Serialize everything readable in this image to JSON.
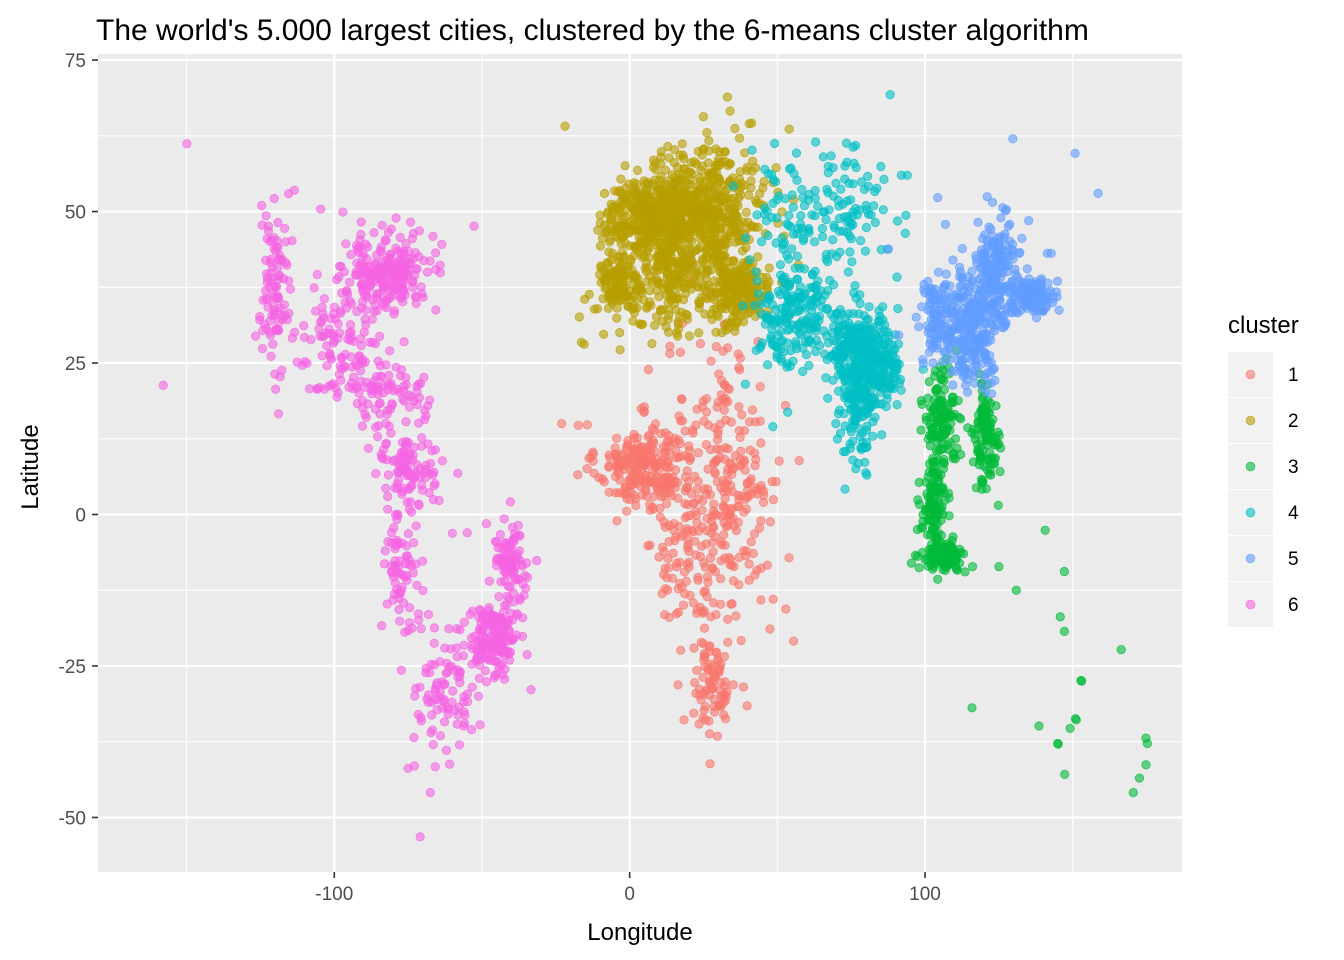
{
  "chart_data": {
    "type": "scatter",
    "title": "The world's 5.000 largest cities, clustered by the 6-means cluster algorithm",
    "xlabel": "Longitude",
    "ylabel": "Latitude",
    "xlim": [
      -180,
      187
    ],
    "ylim": [
      -59,
      76
    ],
    "x_ticks": [
      -100,
      0,
      100
    ],
    "x_tick_labels": [
      "-100",
      "0",
      "100"
    ],
    "y_ticks": [
      -50,
      -25,
      0,
      25,
      50,
      75
    ],
    "y_tick_labels": [
      "-50",
      "-25",
      "0",
      "25",
      "50",
      "75"
    ],
    "grid": true,
    "panel_background": "#ebebeb",
    "point_opacity": 0.6,
    "legend": {
      "title": "cluster",
      "placement": "right"
    },
    "series": [
      {
        "name": "1",
        "color": "#f8766d",
        "clusters": [
          {
            "cx": 5,
            "cy": 8,
            "sx": 8,
            "sy": 3.5,
            "n": 230
          },
          {
            "cx": 32,
            "cy": 5,
            "sx": 10,
            "sy": 12,
            "n": 260
          },
          {
            "cx": 28,
            "cy": -28,
            "sx": 4,
            "sy": 4,
            "n": 80
          },
          {
            "cx": 18,
            "cy": -7,
            "sx": 6,
            "sy": 5,
            "n": 60
          }
        ],
        "points": [
          [
            -17.4,
            14.7
          ],
          [
            -13.2,
            9.5
          ],
          [
            3.4,
            6.5
          ],
          [
            7.5,
            9.1
          ],
          [
            36.8,
            -1.3
          ],
          [
            39.3,
            -6.8
          ],
          [
            28.0,
            -26.2
          ],
          [
            31.0,
            -29.9
          ],
          [
            18.4,
            -33.9
          ],
          [
            25.6,
            -33.9
          ],
          [
            47.5,
            -18.9
          ],
          [
            55.5,
            -20.9
          ],
          [
            38.7,
            9.0
          ],
          [
            32.5,
            15.6
          ],
          [
            45.3,
            2.0
          ],
          [
            13.2,
            -8.8
          ],
          [
            15.3,
            -4.3
          ],
          [
            -23.0,
            15.0
          ],
          [
            42.5,
            15.3
          ],
          [
            44.2,
            15.4
          ]
        ]
      },
      {
        "name": "2",
        "color": "#b79f00",
        "clusters": [
          {
            "cx": 10,
            "cy": 49,
            "sx": 9,
            "sy": 3.5,
            "n": 520
          },
          {
            "cx": 28,
            "cy": 50,
            "sx": 9,
            "sy": 5,
            "n": 380
          },
          {
            "cx": 35,
            "cy": 37,
            "sx": 7,
            "sy": 3,
            "n": 230
          },
          {
            "cx": -4,
            "cy": 38,
            "sx": 3.5,
            "sy": 2.5,
            "n": 110
          },
          {
            "cx": 14,
            "cy": 40,
            "sx": 6,
            "sy": 2.5,
            "n": 90
          },
          {
            "cx": 8,
            "cy": 33,
            "sx": 8,
            "sy": 2.5,
            "n": 60
          }
        ],
        "points": [
          [
            -21.9,
            64.1
          ],
          [
            10.7,
            59.9
          ],
          [
            18.1,
            59.3
          ],
          [
            24.9,
            60.2
          ],
          [
            30.3,
            59.9
          ],
          [
            33.1,
            68.9
          ],
          [
            40.5,
            64.5
          ],
          [
            39.7,
            47.2
          ],
          [
            31.2,
            30.0
          ],
          [
            32.3,
            31.2
          ],
          [
            -15.4,
            28.1
          ],
          [
            -16.3,
            28.4
          ],
          [
            -17.0,
            32.6
          ],
          [
            13.2,
            32.9
          ],
          [
            44.4,
            33.3
          ],
          [
            54.0,
            63.6
          ],
          [
            41.3,
            64.6
          ],
          [
            50.2,
            53.2
          ]
        ]
      },
      {
        "name": "3",
        "color": "#00ba38",
        "clusters": [
          {
            "cx": 106,
            "cy": -6.8,
            "sx": 3.5,
            "sy": 1.2,
            "n": 120
          },
          {
            "cx": 103,
            "cy": 2,
            "sx": 2.2,
            "sy": 3.5,
            "n": 110
          },
          {
            "cx": 121,
            "cy": 13,
            "sx": 2,
            "sy": 4,
            "n": 110
          },
          {
            "cx": 105,
            "cy": 16,
            "sx": 3,
            "sy": 4,
            "n": 120
          }
        ],
        "points": [
          [
            151.2,
            -33.9
          ],
          [
            150.9,
            -33.7
          ],
          [
            144.9,
            -37.8
          ],
          [
            145.1,
            -37.9
          ],
          [
            153.0,
            -27.5
          ],
          [
            152.8,
            -27.4
          ],
          [
            115.9,
            -31.9
          ],
          [
            138.6,
            -34.9
          ],
          [
            174.8,
            -36.9
          ],
          [
            175.3,
            -37.8
          ],
          [
            174.8,
            -41.3
          ],
          [
            172.6,
            -43.5
          ],
          [
            170.5,
            -45.9
          ],
          [
            147.3,
            -42.9
          ],
          [
            149.1,
            -35.3
          ],
          [
            147.2,
            -19.3
          ],
          [
            145.8,
            -16.9
          ],
          [
            147.2,
            -9.4
          ],
          [
            140.7,
            -2.6
          ],
          [
            130.9,
            -12.5
          ],
          [
            166.4,
            -22.3
          ],
          [
            116.1,
            -8.6
          ],
          [
            125.0,
            -8.6
          ],
          [
            124.8,
            1.5
          ],
          [
            125.4,
            7.1
          ]
        ]
      },
      {
        "name": "4",
        "color": "#00bfc4",
        "clusters": [
          {
            "cx": 78,
            "cy": 22,
            "sx": 3.5,
            "sy": 6,
            "n": 260
          },
          {
            "cx": 77,
            "cy": 28,
            "sx": 6,
            "sy": 3,
            "n": 150
          },
          {
            "cx": 87,
            "cy": 24,
            "sx": 2.5,
            "sy": 2.5,
            "n": 70
          },
          {
            "cx": 55,
            "cy": 33,
            "sx": 6,
            "sy": 4,
            "n": 170
          },
          {
            "cx": 65,
            "cy": 50,
            "sx": 12,
            "sy": 5,
            "n": 150
          }
        ],
        "points": [
          [
            80.3,
            6.5
          ],
          [
            79.9,
            6.9
          ],
          [
            72.9,
            4.2
          ],
          [
            91.9,
            20.5
          ],
          [
            90.4,
            23.8
          ],
          [
            88.2,
            69.3
          ],
          [
            76.5,
            60.9
          ],
          [
            73.4,
            61.3
          ],
          [
            86.1,
            55.3
          ],
          [
            83.0,
            53.3
          ],
          [
            66.6,
            42.9
          ],
          [
            51.4,
            25.3
          ],
          [
            55.3,
            25.3
          ],
          [
            54.4,
            24.5
          ],
          [
            58.6,
            23.6
          ],
          [
            39.2,
            21.5
          ],
          [
            46.7,
            24.7
          ],
          [
            49.9,
            26.4
          ],
          [
            47.9,
            29.4
          ],
          [
            87.3,
            43.8
          ],
          [
            80.0,
            51.0
          ],
          [
            92.0,
            56.0
          ],
          [
            94.0,
            56.0
          ],
          [
            53.5,
            16.9
          ],
          [
            48.5,
            14.5
          ]
        ]
      },
      {
        "name": "5",
        "color": "#619cff",
        "clusters": [
          {
            "cx": 116,
            "cy": 31,
            "sx": 5,
            "sy": 4.5,
            "n": 250
          },
          {
            "cx": 124,
            "cy": 40,
            "sx": 4,
            "sy": 4.5,
            "n": 180
          },
          {
            "cx": 137,
            "cy": 36,
            "sx": 3.5,
            "sy": 1.5,
            "n": 110
          },
          {
            "cx": 104,
            "cy": 33,
            "sx": 3,
            "sy": 3,
            "n": 80
          }
        ],
        "points": [
          [
            142.7,
            43.1
          ],
          [
            141.4,
            43.1
          ],
          [
            131.9,
            43.1
          ],
          [
            127.5,
            50.3
          ],
          [
            135.1,
            48.5
          ],
          [
            150.8,
            59.6
          ],
          [
            158.6,
            53.0
          ],
          [
            129.7,
            62.0
          ],
          [
            121.5,
            25.0
          ],
          [
            120.3,
            22.6
          ],
          [
            114.2,
            22.3
          ],
          [
            113.3,
            23.1
          ],
          [
            113.0,
            22.8
          ],
          [
            108.9,
            34.3
          ],
          [
            106.6,
            29.6
          ],
          [
            104.1,
            30.7
          ],
          [
            102.7,
            25.0
          ],
          [
            101.8,
            36.6
          ],
          [
            91.1,
            29.6
          ],
          [
            87.6,
            43.8
          ],
          [
            111.7,
            40.8
          ],
          [
            106.9,
            47.9
          ],
          [
            104.3,
            52.3
          ],
          [
            114.5,
            38.0
          ],
          [
            125.4,
            43.9
          ],
          [
            126.7,
            45.8
          ],
          [
            129.6,
            44.6
          ]
        ]
      },
      {
        "name": "6",
        "color": "#f564e3",
        "clusters": [
          {
            "cx": -82,
            "cy": 40,
            "sx": 7,
            "sy": 3,
            "n": 220
          },
          {
            "cx": -120,
            "cy": 37,
            "sx": 3,
            "sy": 6,
            "n": 90
          },
          {
            "cx": -98,
            "cy": 28,
            "sx": 7,
            "sy": 5,
            "n": 120
          },
          {
            "cx": -80,
            "cy": 20,
            "sx": 7,
            "sy": 3,
            "n": 70
          },
          {
            "cx": -75,
            "cy": 8,
            "sx": 5,
            "sy": 3,
            "n": 90
          },
          {
            "cx": -77,
            "cy": -8,
            "sx": 3,
            "sy": 6,
            "n": 70
          },
          {
            "cx": -46,
            "cy": -21,
            "sx": 4,
            "sy": 3,
            "n": 160
          },
          {
            "cx": -40,
            "cy": -8,
            "sx": 3,
            "sy": 3.5,
            "n": 90
          },
          {
            "cx": -62,
            "cy": -30,
            "sx": 5,
            "sy": 5,
            "n": 80
          }
        ],
        "points": [
          [
            -149.9,
            61.2
          ],
          [
            -157.9,
            21.3
          ],
          [
            -123.1,
            49.3
          ],
          [
            -122.7,
            45.5
          ],
          [
            -122.3,
            47.6
          ],
          [
            -113.5,
            53.5
          ],
          [
            -104.6,
            50.4
          ],
          [
            -97.1,
            49.9
          ],
          [
            -66.6,
            45.9
          ],
          [
            -63.6,
            44.6
          ],
          [
            -52.7,
            47.6
          ],
          [
            -73.6,
            45.5
          ],
          [
            -71.2,
            46.8
          ],
          [
            -118.2,
            34.1
          ],
          [
            -117.2,
            32.7
          ],
          [
            -99.1,
            19.4
          ],
          [
            -103.3,
            20.7
          ],
          [
            -89.6,
            21.0
          ],
          [
            -87.0,
            20.6
          ],
          [
            -86.8,
            21.2
          ],
          [
            -90.5,
            14.6
          ],
          [
            -84.1,
            9.9
          ],
          [
            -79.5,
            9.0
          ],
          [
            -74.1,
            4.7
          ],
          [
            -66.9,
            10.5
          ],
          [
            -58.2,
            6.8
          ],
          [
            -78.5,
            -0.2
          ],
          [
            -79.9,
            -2.2
          ],
          [
            -77.0,
            -12.0
          ],
          [
            -71.5,
            -16.4
          ],
          [
            -68.1,
            -16.5
          ],
          [
            -70.7,
            -33.5
          ],
          [
            -73.0,
            -36.8
          ],
          [
            -71.6,
            -33.0
          ],
          [
            -72.9,
            -41.5
          ],
          [
            -67.5,
            -45.9
          ],
          [
            -70.9,
            -53.2
          ],
          [
            -58.4,
            -34.6
          ],
          [
            -57.6,
            -38.0
          ],
          [
            -56.2,
            -34.9
          ],
          [
            -51.2,
            -30.0
          ],
          [
            -48.5,
            -27.6
          ],
          [
            -47.9,
            -15.8
          ],
          [
            -43.2,
            -22.9
          ],
          [
            -46.6,
            -23.5
          ],
          [
            -38.5,
            -3.7
          ],
          [
            -34.9,
            -8.0
          ],
          [
            -48.5,
            -1.5
          ],
          [
            -60.0,
            -3.1
          ],
          [
            -55.0,
            -3.0
          ]
        ]
      }
    ]
  }
}
